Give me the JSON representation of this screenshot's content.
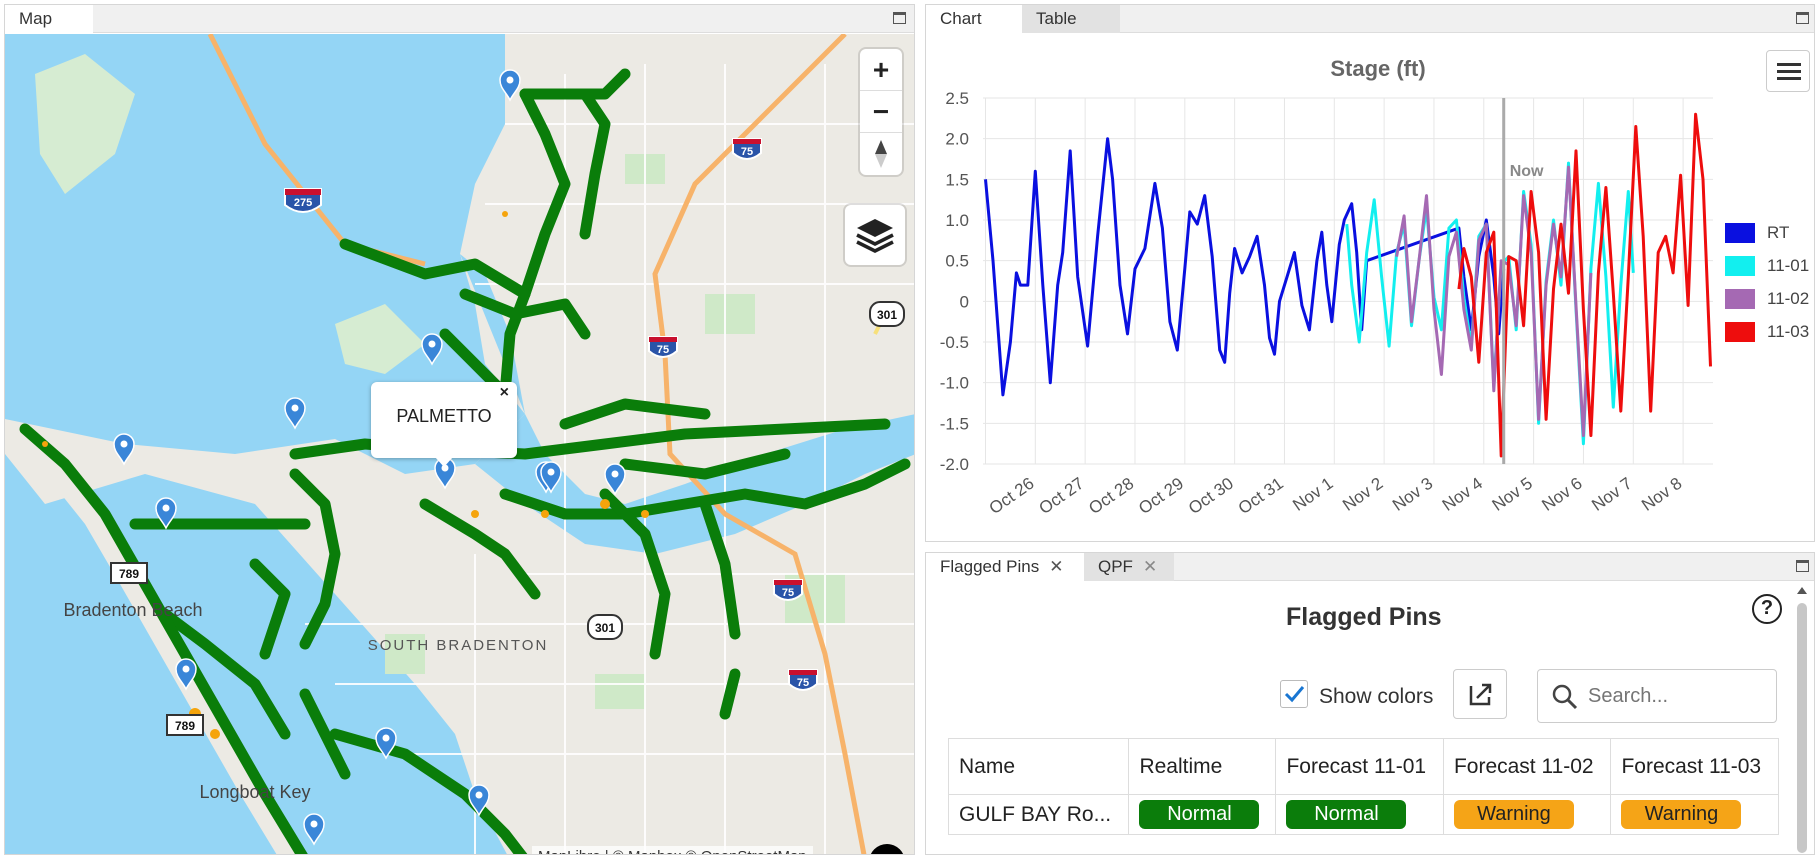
{
  "map_panel": {
    "tab": "Map",
    "popup_label": "PALMETTO",
    "place_labels": [
      "Bradenton Beach",
      "SOUTH BRADENTON",
      "Longboat Key"
    ],
    "highway_shields": [
      "275",
      "75",
      "75",
      "75",
      "75",
      "301",
      "301",
      "789",
      "789"
    ],
    "attribution": "MapLibre | © Mapbox © OpenStreetMap",
    "zoom_in": "+",
    "zoom_out": "−",
    "pins_count": 13
  },
  "chart_panel": {
    "tabs": [
      "Chart",
      "Table"
    ]
  },
  "flagged_panel": {
    "tabs": [
      "Flagged Pins",
      "QPF"
    ],
    "title": "Flagged Pins",
    "show_colors_label": "Show colors",
    "search_placeholder": "Search...",
    "columns": [
      "Name",
      "Realtime",
      "Forecast 11-01",
      "Forecast 11-02",
      "Forecast 11-03"
    ],
    "rows": [
      {
        "name": "GULF BAY Ro...",
        "statuses": [
          "Normal",
          "Normal",
          "Warning",
          "Warning"
        ]
      }
    ],
    "status_colors": {
      "Normal": "#0b7d0b",
      "Warning": "#f5a417"
    }
  },
  "chart_data": {
    "type": "line",
    "title": "Stage (ft)",
    "xlabel": "",
    "ylabel": "",
    "ylim": [
      -2.0,
      2.5
    ],
    "yticks": [
      "2.5",
      "2.0",
      "1.5",
      "1.0",
      "0.5",
      "0",
      "-0.5",
      "-1.0",
      "-1.5",
      "-2.0"
    ],
    "categories": [
      "Oct 26",
      "Oct 27",
      "Oct 28",
      "Oct 29",
      "Oct 30",
      "Oct 31",
      "Nov 1",
      "Nov 2",
      "Nov 3",
      "Nov 4",
      "Nov 5",
      "Nov 6",
      "Nov 7",
      "Nov 8"
    ],
    "now_label": "Now",
    "now_day": 10.4,
    "grid": true,
    "legend_position": "right",
    "series": [
      {
        "name": "RT",
        "color": "#0a10e0",
        "x": [
          0,
          0.15,
          0.35,
          0.5,
          0.62,
          0.7,
          0.85,
          1.0,
          1.15,
          1.3,
          1.45,
          1.55,
          1.7,
          1.85,
          2.05,
          2.25,
          2.45,
          2.55,
          2.7,
          2.85,
          3.0,
          3.2,
          3.4,
          3.55,
          3.7,
          3.85,
          4.0,
          4.1,
          4.25,
          4.4,
          4.55,
          4.7,
          4.8,
          4.9,
          5.0,
          5.15,
          5.3,
          5.45,
          5.6,
          5.7,
          5.8,
          5.9,
          6.05,
          6.2,
          6.35,
          6.5,
          6.65,
          6.75,
          6.85,
          6.95,
          7.1,
          7.2,
          7.35,
          7.45,
          7.55,
          7.65,
          9.5,
          9.6,
          9.75,
          9.9,
          10.05,
          10.2,
          10.3,
          10.4
        ],
        "y": [
          1.5,
          0.5,
          -1.15,
          -0.5,
          0.35,
          0.2,
          0.2,
          1.6,
          0.2,
          -1.0,
          0.2,
          0.6,
          1.85,
          0.3,
          -0.55,
          0.8,
          2.0,
          1.5,
          0.2,
          -0.4,
          0.4,
          0.65,
          1.45,
          0.9,
          -0.25,
          -0.6,
          0.4,
          1.1,
          0.95,
          1.3,
          0.55,
          -0.6,
          -0.75,
          0.1,
          0.65,
          0.35,
          0.55,
          0.8,
          0.2,
          -0.45,
          -0.65,
          0.0,
          0.3,
          0.6,
          -0.05,
          -0.35,
          0.5,
          0.85,
          0.2,
          -0.25,
          0.7,
          1.0,
          1.2,
          0.6,
          -0.35,
          0.5,
          0.9,
          0.3,
          -0.35,
          0.55,
          1.0,
          0.3,
          -0.4,
          0.4
        ]
      },
      {
        "name": "11-01",
        "color": "#12efef",
        "x": [
          7.25,
          7.35,
          7.5,
          7.65,
          7.8,
          7.95,
          8.1,
          8.25,
          8.4,
          8.55,
          8.7,
          8.85,
          9.0,
          9.15,
          9.3,
          9.45,
          9.6,
          9.75,
          9.9,
          10.05,
          10.2,
          10.35,
          10.5,
          10.65,
          10.8,
          10.95,
          11.1,
          11.25,
          11.4,
          11.55,
          11.7,
          11.85,
          12.0,
          12.15,
          12.3,
          12.45,
          12.6,
          12.75,
          12.9,
          13.0
        ],
        "y": [
          0.95,
          0.2,
          -0.5,
          0.6,
          1.25,
          0.3,
          -0.55,
          0.6,
          0.95,
          -0.3,
          0.5,
          1.15,
          0.05,
          -0.35,
          0.9,
          1.0,
          0.05,
          -0.55,
          0.8,
          0.95,
          -1.05,
          0.45,
          0.55,
          -0.35,
          1.35,
          0.7,
          -1.5,
          0.25,
          1.0,
          0.2,
          1.7,
          -0.1,
          -1.75,
          0.4,
          1.45,
          0.3,
          -1.3,
          0.2,
          1.35,
          0.35
        ]
      },
      {
        "name": "11-02",
        "color": "#a569b3",
        "x": [
          8.25,
          8.4,
          8.55,
          8.7,
          8.85,
          9.0,
          9.15,
          9.3,
          9.45,
          9.6,
          9.75,
          9.9,
          10.05,
          10.2,
          10.35,
          10.5,
          10.65,
          10.8,
          10.95,
          11.1,
          11.25,
          11.4,
          11.55,
          11.7,
          11.85,
          12.0,
          12.15
        ],
        "y": [
          0.55,
          1.05,
          -0.25,
          0.5,
          1.3,
          -0.1,
          -0.9,
          0.55,
          0.85,
          -0.1,
          -0.6,
          0.75,
          0.95,
          -1.1,
          0.5,
          0.45,
          -0.3,
          1.3,
          0.6,
          -1.45,
          0.2,
          0.95,
          0.3,
          1.65,
          -0.05,
          -1.65,
          0.35
        ]
      },
      {
        "name": "11-03",
        "color": "#ee0d0d",
        "x": [
          9.5,
          9.6,
          9.75,
          9.9,
          10.05,
          10.2,
          10.35,
          10.5,
          10.65,
          10.8,
          10.95,
          11.1,
          11.25,
          11.4,
          11.55,
          11.7,
          11.85,
          12.0,
          12.15,
          12.3,
          12.45,
          12.6,
          12.75,
          12.9,
          13.05,
          13.2,
          13.35,
          13.5,
          13.65,
          13.8,
          13.95,
          14.1,
          14.25,
          14.4,
          14.55
        ],
        "y": [
          0.15,
          0.65,
          0.3,
          -0.75,
          0.6,
          0.85,
          -1.9,
          0.55,
          0.5,
          -0.3,
          1.35,
          0.6,
          -1.45,
          0.15,
          0.95,
          0.1,
          1.85,
          -0.1,
          -1.65,
          0.35,
          1.4,
          0.1,
          -1.35,
          0.3,
          2.15,
          0.8,
          -1.35,
          0.6,
          0.8,
          0.35,
          1.55,
          -0.05,
          2.3,
          1.5,
          -0.8
        ]
      }
    ]
  }
}
